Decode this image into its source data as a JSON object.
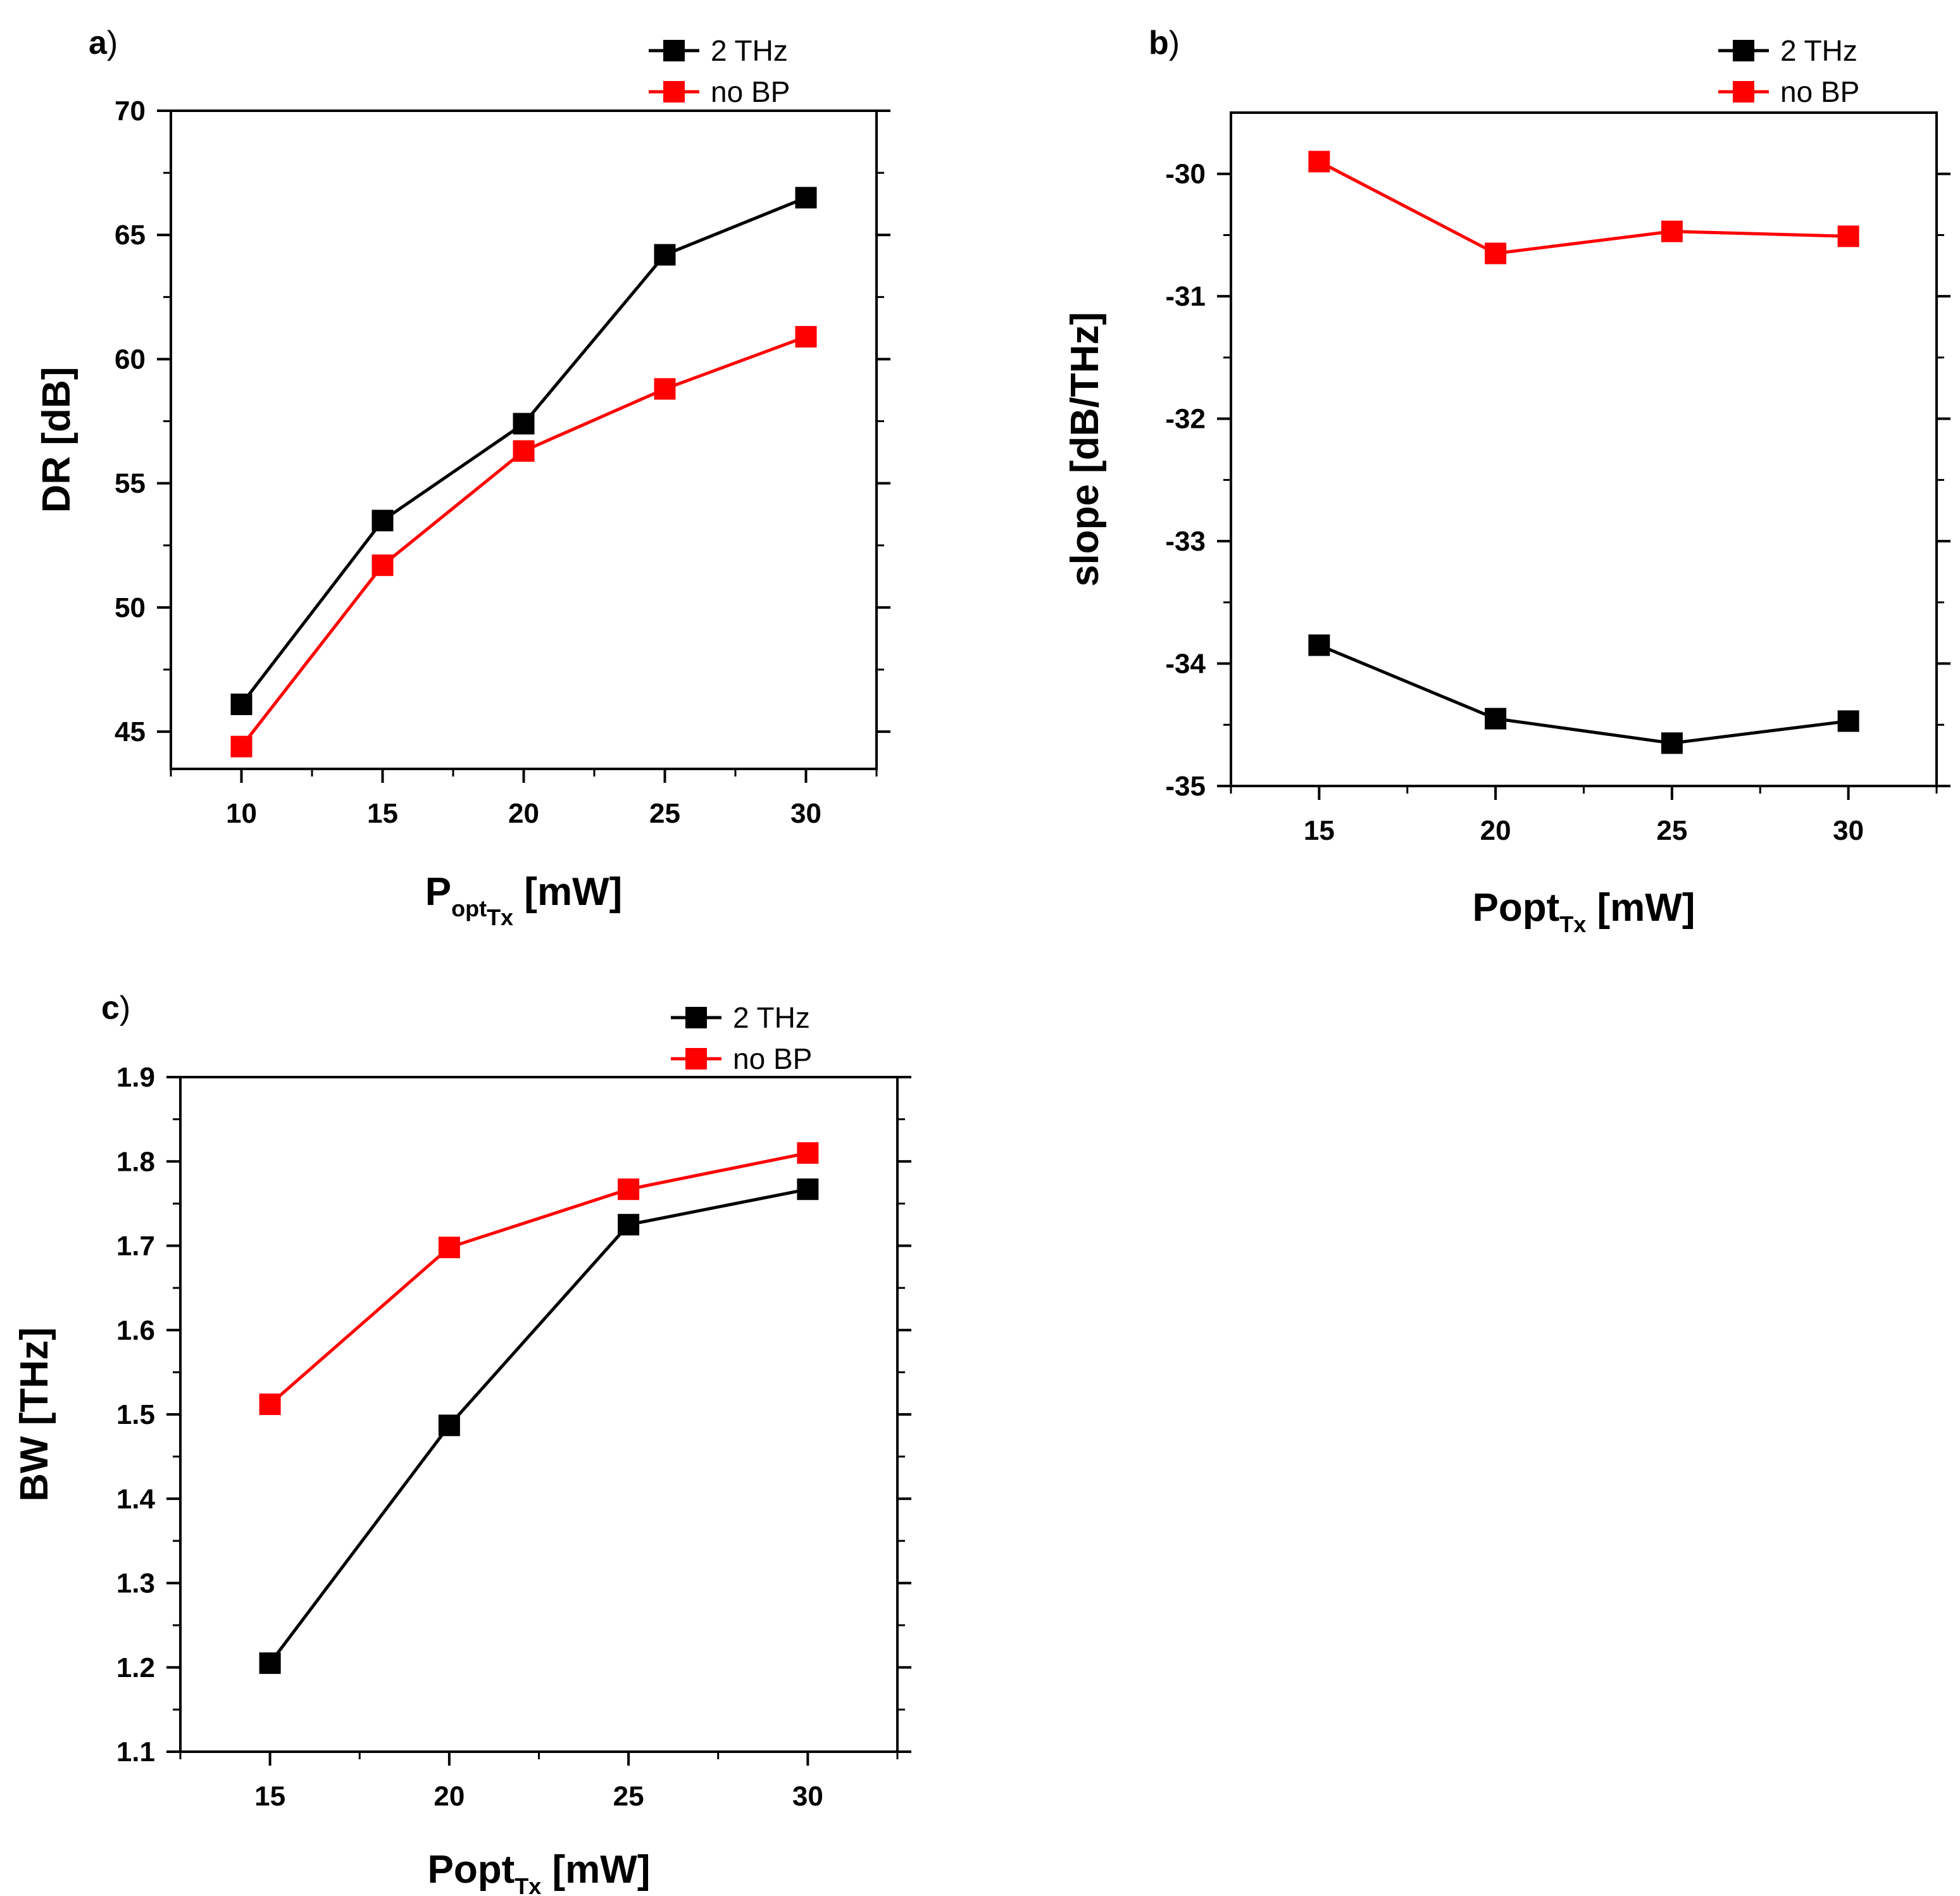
{
  "chart_data": [
    {
      "type": "line",
      "panel_label": "a",
      "panel_paren": ")",
      "xlabel_main": "P",
      "xlabel_sub": "opt",
      "xlabel_subsub": "Tx",
      "xlabel_unit": " [mW]",
      "ylabel": "DR [dB]",
      "xlim": [
        7.5,
        32.5
      ],
      "ylim": [
        43.5,
        70
      ],
      "xticks": [
        10,
        15,
        20,
        25,
        30
      ],
      "yticks": [
        45,
        50,
        55,
        60,
        65,
        70
      ],
      "legend_position": "top-right",
      "series": [
        {
          "name": "2 THz",
          "color": "#000000",
          "x": [
            10,
            15,
            20,
            25,
            30
          ],
          "values": [
            46.1,
            53.5,
            57.4,
            64.2,
            66.5
          ]
        },
        {
          "name": "no BP",
          "color": "#ff0000",
          "x": [
            10,
            15,
            20,
            25,
            30
          ],
          "values": [
            44.4,
            51.7,
            56.3,
            58.8,
            60.9
          ]
        }
      ]
    },
    {
      "type": "line",
      "panel_label": "b",
      "panel_paren": ")",
      "xlabel_main": "Popt",
      "xlabel_sub": "Tx",
      "xlabel_unit": " [mW]",
      "ylabel": "slope [dB/THz]",
      "xlim": [
        12.5,
        32.5
      ],
      "ylim": [
        -35,
        -29.5
      ],
      "xticks": [
        15,
        20,
        25,
        30
      ],
      "yticks": [
        -35,
        -34,
        -33,
        -32,
        -31,
        -30
      ],
      "legend_position": "top-right",
      "series": [
        {
          "name": "2 THz",
          "color": "#000000",
          "x": [
            15,
            20,
            25,
            30
          ],
          "values": [
            -33.85,
            -34.45,
            -34.65,
            -34.47
          ]
        },
        {
          "name": "no BP",
          "color": "#ff0000",
          "x": [
            15,
            20,
            25,
            30
          ],
          "values": [
            -29.9,
            -30.65,
            -30.47,
            -30.51
          ]
        }
      ]
    },
    {
      "type": "line",
      "panel_label": "c",
      "panel_paren": ")",
      "xlabel_main": "Popt",
      "xlabel_sub": "Tx",
      "xlabel_unit": " [mW]",
      "ylabel": "BW [THz]",
      "xlim": [
        12.5,
        32.5
      ],
      "ylim": [
        1.1,
        1.9
      ],
      "xticks": [
        15,
        20,
        25,
        30
      ],
      "yticks": [
        1.1,
        1.2,
        1.3,
        1.4,
        1.5,
        1.6,
        1.7,
        1.8,
        1.9
      ],
      "legend_position": "top-right",
      "series": [
        {
          "name": "2 THz",
          "color": "#000000",
          "x": [
            15,
            20,
            25,
            30
          ],
          "values": [
            1.205,
            1.487,
            1.725,
            1.767
          ]
        },
        {
          "name": "no BP",
          "color": "#ff0000",
          "x": [
            15,
            20,
            25,
            30
          ],
          "values": [
            1.512,
            1.698,
            1.767,
            1.81
          ]
        }
      ]
    }
  ]
}
